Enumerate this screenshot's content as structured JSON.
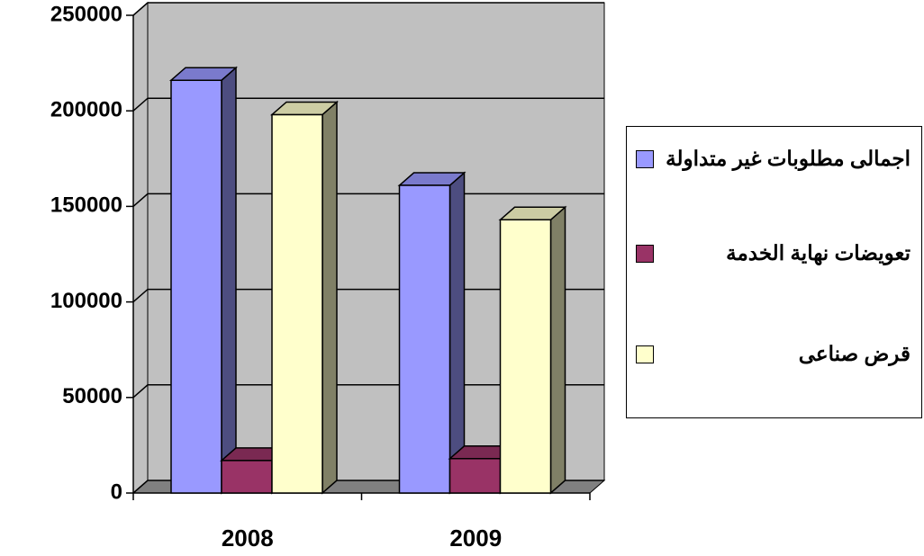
{
  "chart_data": {
    "type": "bar3d",
    "categories": [
      "2008",
      "2009"
    ],
    "series": [
      {
        "name": "اجمالى مطلوبات غير متداولة",
        "color": "#9999ff",
        "values": [
          216000,
          161000
        ]
      },
      {
        "name": "تعويضات نهاية الخدمة",
        "color": "#993366",
        "values": [
          17000,
          18000
        ]
      },
      {
        "name": "قرض صناعى",
        "color": "#ffffcc",
        "values": [
          198000,
          143000
        ]
      }
    ],
    "ylim": [
      0,
      250000
    ],
    "yticks": [
      0,
      50000,
      100000,
      150000,
      200000,
      250000
    ],
    "grid": true,
    "legend": "right"
  }
}
